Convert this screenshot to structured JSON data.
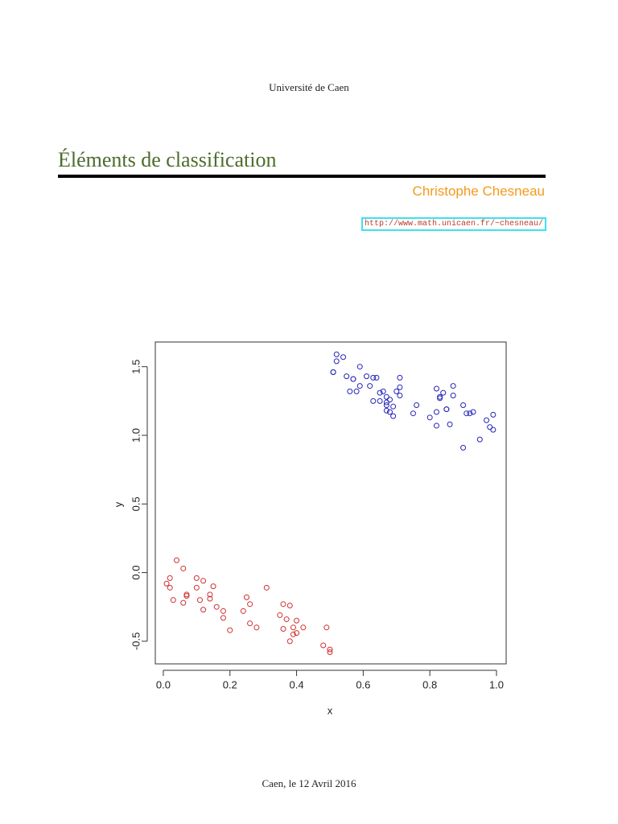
{
  "header": {
    "institution": "Université de Caen"
  },
  "title": "Éléments de classification",
  "author": "Christophe Chesneau",
  "url": "http://www.math.unicaen.fr/~chesneau/",
  "chart_data": {
    "type": "scatter",
    "xlabel": "x",
    "ylabel": "y",
    "xlim": [
      -0.024,
      1.029
    ],
    "ylim": [
      -0.665,
      1.68
    ],
    "xticks": [
      {
        "value": 0,
        "label": "0.0"
      },
      0.2,
      0.4,
      0.6,
      0.8,
      {
        "value": 1,
        "label": "1.0"
      }
    ],
    "yticks": [
      -0.5,
      {
        "value": 0,
        "label": "0.0"
      },
      0.5,
      {
        "value": 1,
        "label": "1.0"
      },
      1.5
    ],
    "series": [
      {
        "color": "#d03030",
        "x": [
          0.04,
          0.02,
          0.01,
          0.02,
          0.06,
          0.03,
          0.06,
          0.07,
          0.07,
          0.1,
          0.1,
          0.11,
          0.12,
          0.12,
          0.14,
          0.14,
          0.15,
          0.16,
          0.18,
          0.18,
          0.2,
          0.25,
          0.24,
          0.26,
          0.26,
          0.28,
          0.31,
          0.35,
          0.36,
          0.36,
          0.38,
          0.37,
          0.38,
          0.39,
          0.39,
          0.4,
          0.4,
          0.42,
          0.49,
          0.48,
          0.5,
          0.5
        ],
        "values": [
          0.09,
          -0.04,
          -0.08,
          -0.11,
          0.03,
          -0.2,
          -0.22,
          -0.16,
          -0.17,
          -0.04,
          -0.11,
          -0.2,
          -0.06,
          -0.27,
          -0.16,
          -0.19,
          -0.1,
          -0.25,
          -0.28,
          -0.33,
          -0.42,
          -0.18,
          -0.28,
          -0.23,
          -0.37,
          -0.4,
          -0.11,
          -0.31,
          -0.23,
          -0.41,
          -0.24,
          -0.34,
          -0.5,
          -0.45,
          -0.4,
          -0.35,
          -0.44,
          -0.4,
          -0.4,
          -0.53,
          -0.56,
          -0.58
        ]
      },
      {
        "color": "#2525b8",
        "x": [
          0.52,
          0.52,
          0.54,
          0.51,
          0.51,
          0.59,
          0.55,
          0.57,
          0.57,
          0.59,
          0.56,
          0.58,
          0.61,
          0.63,
          0.64,
          0.62,
          0.65,
          0.63,
          0.65,
          0.66,
          0.67,
          0.68,
          0.67,
          0.67,
          0.67,
          0.69,
          0.68,
          0.69,
          0.7,
          0.71,
          0.71,
          0.71,
          0.75,
          0.76,
          0.8,
          0.82,
          0.82,
          0.83,
          0.83,
          0.82,
          0.84,
          0.85,
          0.85,
          0.87,
          0.87,
          0.86,
          0.9,
          0.91,
          0.92,
          0.93,
          0.9,
          0.95,
          0.97,
          0.98,
          0.99,
          0.99
        ],
        "values": [
          1.59,
          1.54,
          1.57,
          1.46,
          1.46,
          1.5,
          1.43,
          1.41,
          1.41,
          1.36,
          1.32,
          1.32,
          1.43,
          1.42,
          1.42,
          1.36,
          1.31,
          1.25,
          1.25,
          1.32,
          1.28,
          1.26,
          1.24,
          1.22,
          1.18,
          1.21,
          1.17,
          1.14,
          1.32,
          1.35,
          1.42,
          1.29,
          1.16,
          1.22,
          1.13,
          1.34,
          1.07,
          1.27,
          1.28,
          1.17,
          1.31,
          1.19,
          1.19,
          1.36,
          1.29,
          1.08,
          1.22,
          1.16,
          1.16,
          1.17,
          0.91,
          0.97,
          1.11,
          1.06,
          1.15,
          1.04
        ]
      }
    ]
  },
  "footer": "Caen, le 12 Avril 2016"
}
